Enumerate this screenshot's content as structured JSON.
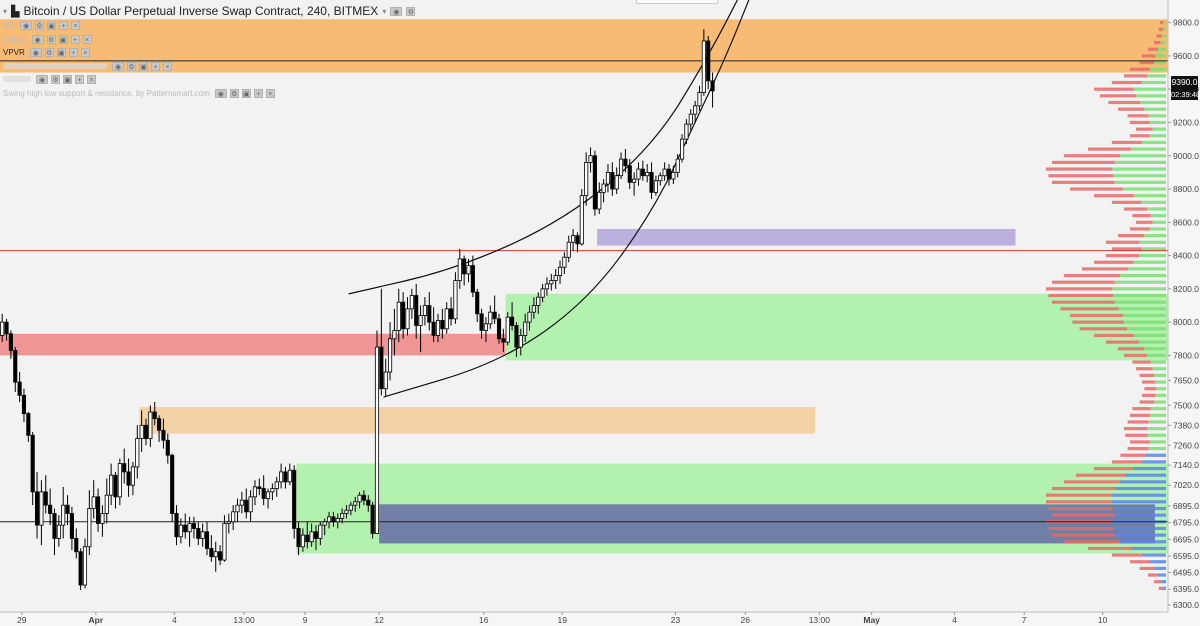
{
  "header": {
    "title": "Bitcoin / US Dollar Perpetual Inverse Swap Contract, 240, BITMEX",
    "indicators": [
      {
        "name": "MA",
        "dark": false
      },
      {
        "name": "Guppy",
        "dark": false
      },
      {
        "name": "VPVR",
        "dark": true
      },
      {
        "name": "",
        "dark": false
      },
      {
        "name": "",
        "dark": false
      },
      {
        "name": "Swing high low support & resistance, by Patternsmart.com",
        "dark": false
      }
    ]
  },
  "price_badge": "9390.0",
  "timer_badge": "02:39:48",
  "colors": {
    "up_candle": "#ffffff",
    "down_candle": "#000000",
    "zone_orange": "#f7b66a",
    "zone_green": "#aef2a8",
    "zone_red": "#f08d8d",
    "zone_purple": "#b8a9dc",
    "zone_navy": "#6c78a4"
  },
  "chart_data": {
    "type": "candlestick",
    "title": "Bitcoin / US Dollar Perpetual Inverse Swap Contract, 240, BITMEX",
    "y_ticks": [
      9800,
      9600,
      9400,
      9200,
      9000,
      8800,
      8600,
      8400,
      8200,
      8000,
      7800,
      7650,
      7500,
      7380,
      7260,
      7140,
      7020,
      6895,
      6795,
      6695,
      6595,
      6495,
      6395,
      6300
    ],
    "x_ticks": [
      "29",
      "Apr",
      "4",
      "13:00",
      "9",
      "12",
      "16",
      "19",
      "23",
      "26",
      "13:00",
      "May",
      "4",
      "7",
      "10"
    ],
    "x_range_bars": [
      0,
      268
    ],
    "x_tick_bars": [
      5,
      22,
      40,
      56,
      70,
      87,
      111,
      129,
      155,
      171,
      188,
      200,
      219,
      235,
      253
    ],
    "ylim": [
      6300,
      9900
    ],
    "current_price": 9390,
    "horizontal_lines": [
      {
        "price": 9570,
        "color": "#222222"
      },
      {
        "price": 8430,
        "color": "#d23a3a"
      },
      {
        "price": 6800,
        "color": "#222222"
      }
    ],
    "zones": [
      {
        "x0": 0,
        "x1": 268,
        "y_top": 9820,
        "y_bottom": 9500,
        "color": "#f7b66a"
      },
      {
        "x0": 0,
        "x1": 116,
        "y_top": 7930,
        "y_bottom": 7800,
        "color": "#f08d8d"
      },
      {
        "x0": 116,
        "x1": 268,
        "y_top": 8170,
        "y_bottom": 7770,
        "color": "#aef2a8"
      },
      {
        "x0": 137,
        "x1": 233,
        "y_top": 8560,
        "y_bottom": 8460,
        "color": "#b8a9dc"
      },
      {
        "x0": 32,
        "x1": 187,
        "y_top": 7490,
        "y_bottom": 7330,
        "color": "#f5cfa0"
      },
      {
        "x0": 68,
        "x1": 268,
        "y_top": 7150,
        "y_bottom": 6610,
        "color": "#aef2a8"
      },
      {
        "x0": 87,
        "x1": 265,
        "y_top": 6905,
        "y_bottom": 6670,
        "color": "#6c78a4"
      }
    ],
    "arcs": [
      {
        "points": [
          [
            80,
            8170
          ],
          [
            105,
            8320
          ],
          [
            130,
            8620
          ],
          [
            150,
            9060
          ],
          [
            163,
            9620
          ],
          [
            172,
            10080
          ]
        ]
      },
      {
        "points": [
          [
            88,
            7550
          ],
          [
            115,
            7760
          ],
          [
            135,
            8130
          ],
          [
            150,
            8670
          ],
          [
            160,
            9230
          ],
          [
            167,
            9620
          ],
          [
            174,
            10080
          ]
        ]
      }
    ],
    "ohlc": [
      [
        7920,
        8050,
        7880,
        8000
      ],
      [
        8000,
        8020,
        7890,
        7930
      ],
      [
        7930,
        7950,
        7780,
        7830
      ],
      [
        7830,
        7850,
        7580,
        7640
      ],
      [
        7640,
        7700,
        7520,
        7560
      ],
      [
        7560,
        7600,
        7400,
        7450
      ],
      [
        7450,
        7460,
        7280,
        7320
      ],
      [
        7320,
        7340,
        6900,
        6980
      ],
      [
        6980,
        7100,
        6700,
        6780
      ],
      [
        6780,
        7050,
        6660,
        6980
      ],
      [
        6980,
        7080,
        6850,
        6900
      ],
      [
        6900,
        7000,
        6780,
        6850
      ],
      [
        6850,
        6880,
        6600,
        6700
      ],
      [
        6700,
        6840,
        6650,
        6780
      ],
      [
        6780,
        7010,
        6700,
        6900
      ],
      [
        6900,
        6960,
        6780,
        6850
      ],
      [
        6850,
        6890,
        6630,
        6700
      ],
      [
        6700,
        6760,
        6580,
        6620
      ],
      [
        6620,
        6640,
        6390,
        6420
      ],
      [
        6420,
        6700,
        6400,
        6650
      ],
      [
        6650,
        6990,
        6600,
        6880
      ],
      [
        6880,
        7050,
        6820,
        6950
      ],
      [
        6950,
        7000,
        6740,
        6790
      ],
      [
        6790,
        6900,
        6710,
        6850
      ],
      [
        6850,
        7060,
        6790,
        6960
      ],
      [
        6960,
        7150,
        6900,
        7080
      ],
      [
        7080,
        7100,
        6880,
        6950
      ],
      [
        6950,
        7180,
        6900,
        7150
      ],
      [
        7150,
        7240,
        7030,
        7100
      ],
      [
        7100,
        7180,
        6950,
        7020
      ],
      [
        7020,
        7160,
        6960,
        7130
      ],
      [
        7130,
        7380,
        7060,
        7300
      ],
      [
        7300,
        7470,
        7220,
        7380
      ],
      [
        7380,
        7420,
        7260,
        7300
      ],
      [
        7300,
        7500,
        7250,
        7460
      ],
      [
        7460,
        7520,
        7380,
        7420
      ],
      [
        7420,
        7440,
        7280,
        7350
      ],
      [
        7350,
        7420,
        7240,
        7290
      ],
      [
        7290,
        7330,
        7150,
        7200
      ],
      [
        7200,
        7210,
        6800,
        6850
      ],
      [
        6850,
        6900,
        6660,
        6710
      ],
      [
        6710,
        6820,
        6670,
        6780
      ],
      [
        6780,
        6850,
        6700,
        6740
      ],
      [
        6740,
        6830,
        6650,
        6790
      ],
      [
        6790,
        6830,
        6700,
        6760
      ],
      [
        6760,
        6800,
        6660,
        6700
      ],
      [
        6700,
        6790,
        6650,
        6740
      ],
      [
        6740,
        6800,
        6600,
        6640
      ],
      [
        6640,
        6720,
        6560,
        6590
      ],
      [
        6590,
        6680,
        6500,
        6620
      ],
      [
        6620,
        6660,
        6540,
        6570
      ],
      [
        6570,
        6840,
        6560,
        6790
      ],
      [
        6790,
        6850,
        6730,
        6800
      ],
      [
        6800,
        6900,
        6750,
        6860
      ],
      [
        6860,
        6940,
        6800,
        6900
      ],
      [
        6900,
        6980,
        6850,
        6930
      ],
      [
        6930,
        7000,
        6820,
        6860
      ],
      [
        6860,
        6990,
        6800,
        6950
      ],
      [
        6950,
        7050,
        6900,
        7010
      ],
      [
        7010,
        7060,
        6960,
        7000
      ],
      [
        7000,
        7080,
        6900,
        6940
      ],
      [
        6940,
        7000,
        6880,
        6980
      ],
      [
        6980,
        7030,
        6930,
        7000
      ],
      [
        7000,
        7070,
        6950,
        7040
      ],
      [
        7040,
        7150,
        7000,
        7100
      ],
      [
        7100,
        7130,
        7000,
        7040
      ],
      [
        7040,
        7150,
        7020,
        7110
      ],
      [
        7110,
        7140,
        6700,
        6760
      ],
      [
        6760,
        6800,
        6600,
        6650
      ],
      [
        6650,
        6760,
        6620,
        6720
      ],
      [
        6720,
        6800,
        6640,
        6680
      ],
      [
        6680,
        6790,
        6650,
        6740
      ],
      [
        6740,
        6780,
        6630,
        6700
      ],
      [
        6700,
        6800,
        6660,
        6780
      ],
      [
        6780,
        6820,
        6720,
        6800
      ],
      [
        6800,
        6860,
        6760,
        6830
      ],
      [
        6830,
        6860,
        6770,
        6800
      ],
      [
        6800,
        6850,
        6760,
        6820
      ],
      [
        6820,
        6880,
        6790,
        6850
      ],
      [
        6850,
        6900,
        6820,
        6870
      ],
      [
        6870,
        6920,
        6840,
        6900
      ],
      [
        6900,
        6950,
        6860,
        6920
      ],
      [
        6920,
        6980,
        6880,
        6960
      ],
      [
        6960,
        6990,
        6900,
        6930
      ],
      [
        6930,
        6960,
        6860,
        6900
      ],
      [
        6900,
        6920,
        6700,
        6730
      ],
      [
        6730,
        7950,
        6730,
        7850
      ],
      [
        7850,
        8200,
        7560,
        7600
      ],
      [
        7600,
        7780,
        7550,
        7700
      ],
      [
        7700,
        8000,
        7650,
        7900
      ],
      [
        7900,
        8080,
        7800,
        7950
      ],
      [
        7950,
        8200,
        7880,
        8120
      ],
      [
        8120,
        8180,
        7900,
        7960
      ],
      [
        7960,
        8150,
        7920,
        8080
      ],
      [
        8080,
        8200,
        8020,
        8160
      ],
      [
        8160,
        8230,
        7900,
        7980
      ],
      [
        7980,
        8100,
        7820,
        8040
      ],
      [
        8040,
        8150,
        7980,
        8100
      ],
      [
        8100,
        8180,
        7950,
        8000
      ],
      [
        8000,
        8090,
        7880,
        7920
      ],
      [
        7920,
        8050,
        7880,
        8010
      ],
      [
        8010,
        8080,
        7900,
        7960
      ],
      [
        7960,
        8120,
        7930,
        8080
      ],
      [
        8080,
        8150,
        7980,
        8020
      ],
      [
        8020,
        8300,
        7990,
        8250
      ],
      [
        8250,
        8440,
        8200,
        8380
      ],
      [
        8380,
        8400,
        8220,
        8290
      ],
      [
        8290,
        8380,
        8240,
        8340
      ],
      [
        8340,
        8400,
        8150,
        8180
      ],
      [
        8180,
        8200,
        8000,
        8050
      ],
      [
        8050,
        8080,
        7900,
        7950
      ],
      [
        7950,
        8030,
        7880,
        7990
      ],
      [
        7990,
        8100,
        7960,
        8060
      ],
      [
        8060,
        8160,
        7990,
        8020
      ],
      [
        8020,
        8050,
        7870,
        7900
      ],
      [
        7900,
        7960,
        7820,
        7880
      ],
      [
        7880,
        8060,
        7860,
        8030
      ],
      [
        8030,
        8120,
        7950,
        7980
      ],
      [
        7980,
        8000,
        7790,
        7850
      ],
      [
        7850,
        7960,
        7800,
        7920
      ],
      [
        7920,
        8050,
        7880,
        8000
      ],
      [
        8000,
        8100,
        7950,
        8060
      ],
      [
        8060,
        8150,
        8020,
        8100
      ],
      [
        8100,
        8180,
        8050,
        8150
      ],
      [
        8150,
        8230,
        8120,
        8200
      ],
      [
        8200,
        8270,
        8160,
        8230
      ],
      [
        8230,
        8290,
        8190,
        8250
      ],
      [
        8250,
        8320,
        8200,
        8280
      ],
      [
        8280,
        8370,
        8230,
        8330
      ],
      [
        8330,
        8420,
        8290,
        8390
      ],
      [
        8390,
        8520,
        8360,
        8480
      ],
      [
        8480,
        8560,
        8430,
        8520
      ],
      [
        8520,
        8540,
        8420,
        8470
      ],
      [
        8470,
        8800,
        8460,
        8760
      ],
      [
        8760,
        9020,
        8700,
        8960
      ],
      [
        8960,
        9050,
        8900,
        9000
      ],
      [
        9000,
        9030,
        8640,
        8680
      ],
      [
        8680,
        8840,
        8650,
        8780
      ],
      [
        8780,
        8860,
        8720,
        8830
      ],
      [
        8830,
        8950,
        8780,
        8900
      ],
      [
        8900,
        8960,
        8760,
        8800
      ],
      [
        8800,
        8930,
        8770,
        8880
      ],
      [
        8880,
        9020,
        8860,
        8980
      ],
      [
        8980,
        9040,
        8900,
        8940
      ],
      [
        8940,
        8980,
        8800,
        8840
      ],
      [
        8840,
        8900,
        8760,
        8860
      ],
      [
        8860,
        8960,
        8820,
        8920
      ],
      [
        8920,
        8970,
        8850,
        8880
      ],
      [
        8880,
        8950,
        8840,
        8900
      ],
      [
        8900,
        8960,
        8740,
        8780
      ],
      [
        8780,
        8880,
        8760,
        8850
      ],
      [
        8850,
        8900,
        8820,
        8880
      ],
      [
        8880,
        8960,
        8850,
        8920
      ],
      [
        8920,
        8950,
        8820,
        8860
      ],
      [
        8860,
        8940,
        8830,
        8900
      ],
      [
        8900,
        9010,
        8870,
        8980
      ],
      [
        8980,
        9130,
        8960,
        9100
      ],
      [
        9100,
        9220,
        9070,
        9190
      ],
      [
        9190,
        9280,
        9150,
        9250
      ],
      [
        9250,
        9330,
        9200,
        9300
      ],
      [
        9300,
        9420,
        9270,
        9380
      ],
      [
        9380,
        9760,
        9360,
        9690
      ],
      [
        9690,
        9720,
        9400,
        9450
      ],
      [
        9450,
        9500,
        9290,
        9390
      ]
    ],
    "volume_profile": [
      [
        9800,
        0.05
      ],
      [
        9760,
        0.06
      ],
      [
        9720,
        0.08
      ],
      [
        9680,
        0.1
      ],
      [
        9640,
        0.15
      ],
      [
        9600,
        0.2
      ],
      [
        9560,
        0.22
      ],
      [
        9520,
        0.3
      ],
      [
        9480,
        0.35
      ],
      [
        9440,
        0.45
      ],
      [
        9400,
        0.6
      ],
      [
        9360,
        0.55
      ],
      [
        9320,
        0.48
      ],
      [
        9280,
        0.4
      ],
      [
        9240,
        0.32
      ],
      [
        9200,
        0.3
      ],
      [
        9160,
        0.25
      ],
      [
        9120,
        0.3
      ],
      [
        9080,
        0.45
      ],
      [
        9040,
        0.65
      ],
      [
        9000,
        0.85
      ],
      [
        8960,
        0.95
      ],
      [
        8920,
        1.0
      ],
      [
        8880,
        0.98
      ],
      [
        8840,
        0.95
      ],
      [
        8800,
        0.8
      ],
      [
        8760,
        0.6
      ],
      [
        8720,
        0.45
      ],
      [
        8680,
        0.35
      ],
      [
        8640,
        0.28
      ],
      [
        8600,
        0.25
      ],
      [
        8560,
        0.3
      ],
      [
        8520,
        0.4
      ],
      [
        8480,
        0.5
      ],
      [
        8440,
        0.45
      ],
      [
        8400,
        0.5
      ],
      [
        8360,
        0.6
      ],
      [
        8320,
        0.7
      ],
      [
        8280,
        0.85
      ],
      [
        8240,
        0.95
      ],
      [
        8200,
        1.0
      ],
      [
        8160,
        0.98
      ],
      [
        8120,
        0.95
      ],
      [
        8080,
        0.88
      ],
      [
        8040,
        0.8
      ],
      [
        8000,
        0.78
      ],
      [
        7960,
        0.72
      ],
      [
        7920,
        0.6
      ],
      [
        7880,
        0.5
      ],
      [
        7840,
        0.4
      ],
      [
        7800,
        0.35
      ],
      [
        7760,
        0.28
      ],
      [
        7720,
        0.25
      ],
      [
        7680,
        0.22
      ],
      [
        7640,
        0.2
      ],
      [
        7600,
        0.18
      ],
      [
        7560,
        0.2
      ],
      [
        7520,
        0.22
      ],
      [
        7480,
        0.28
      ],
      [
        7440,
        0.3
      ],
      [
        7400,
        0.32
      ],
      [
        7360,
        0.35
      ],
      [
        7320,
        0.34
      ],
      [
        7280,
        0.3
      ],
      [
        7240,
        0.32
      ],
      [
        7200,
        0.38
      ],
      [
        7160,
        0.45
      ],
      [
        7120,
        0.6
      ],
      [
        7080,
        0.75
      ],
      [
        7040,
        0.85
      ],
      [
        7000,
        0.95
      ],
      [
        6960,
        1.0
      ],
      [
        6920,
        1.0
      ],
      [
        6880,
        0.98
      ],
      [
        6840,
        0.95
      ],
      [
        6800,
        1.0
      ],
      [
        6760,
        0.98
      ],
      [
        6720,
        0.95
      ],
      [
        6680,
        0.85
      ],
      [
        6640,
        0.65
      ],
      [
        6600,
        0.45
      ],
      [
        6560,
        0.3
      ],
      [
        6520,
        0.22
      ],
      [
        6480,
        0.15
      ],
      [
        6440,
        0.1
      ],
      [
        6400,
        0.06
      ]
    ]
  }
}
